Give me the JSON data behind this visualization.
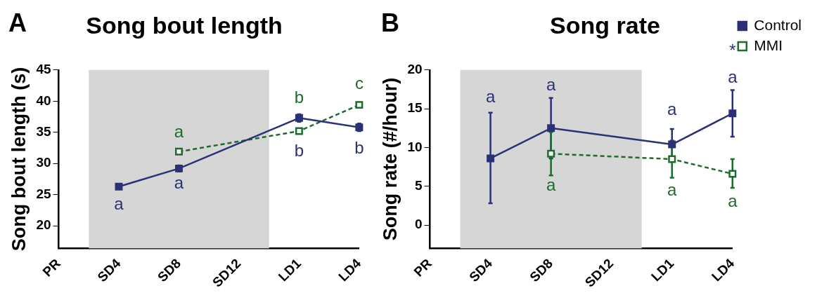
{
  "chart_data": [
    {
      "type": "line",
      "title": "Song bout length",
      "ylabel": "Song bout length (s)",
      "categories": [
        "PR",
        "SD4",
        "SD8",
        "SD12",
        "LD1",
        "LD4"
      ],
      "ylim": [
        16.4,
        45
      ],
      "yticks": [
        20,
        25,
        30,
        35,
        40,
        45
      ],
      "grid": false,
      "legend": false,
      "marker": "square",
      "bands": [
        {
          "axis": "x",
          "from": "SD4",
          "to": "SD12",
          "color": "#d6d6d6"
        }
      ],
      "series": [
        {
          "color": "#2b3175",
          "values": [
            null,
            26.3,
            29.2,
            null,
            37.3,
            35.8
          ],
          "errors": [
            null,
            null,
            0.5,
            null,
            0.6,
            0.6
          ],
          "line_style": "solid"
        },
        {
          "color": "#1e6b2e",
          "values": [
            null,
            null,
            31.9,
            null,
            35.2,
            39.4
          ],
          "errors": [
            null,
            null,
            null,
            null,
            null,
            0.4
          ],
          "line_style": "dashed"
        }
      ],
      "annotations": [
        "A",
        {
          "text": "a",
          "x": "SD4",
          "y": 26.3
        },
        {
          "text": "a",
          "x": "SD8",
          "y": 29.2
        },
        {
          "text": "a",
          "x": "SD8",
          "y": 31.9
        },
        {
          "text": "b",
          "x": "LD1",
          "y": 35.2
        },
        {
          "text": "b",
          "x": "LD1",
          "y": 37.3
        },
        {
          "text": "c",
          "x": "LD4",
          "y": 39.4
        },
        {
          "text": "b",
          "x": "LD4",
          "y": 35.8
        }
      ]
    },
    {
      "type": "line",
      "title": "Song rate",
      "ylabel": "Song rate (#/hour)",
      "categories": [
        "PR",
        "SD4",
        "SD8",
        "SD12",
        "LD1",
        "LD4"
      ],
      "ylim": [
        -3,
        20
      ],
      "yticks": [
        0,
        5,
        10,
        15,
        20
      ],
      "grid": false,
      "legend": "right",
      "marker": "square",
      "bands": [
        {
          "axis": "x",
          "from": "SD4",
          "to": "SD12",
          "color": "#d6d6d6"
        }
      ],
      "series": [
        {
          "name": "Control",
          "color": "#2b3175",
          "values": [
            null,
            8.6,
            12.5,
            null,
            10.4,
            14.4
          ],
          "errors": [
            null,
            [
              2.8,
              14.5
            ],
            [
              8.6,
              16.4
            ],
            null,
            [
              8.4,
              12.4
            ],
            [
              11.4,
              17.4
            ]
          ],
          "line_style": "solid"
        },
        {
          "name": "MMI",
          "color": "#1e6b2e",
          "values": [
            null,
            null,
            9.2,
            null,
            8.5,
            6.6
          ],
          "errors": [
            null,
            null,
            [
              6.4,
              12.0
            ],
            null,
            [
              6.1,
              10.9
            ],
            [
              4.8,
              8.5
            ]
          ],
          "line_style": "dashed"
        }
      ],
      "annotations": [
        "B",
        {
          "text": "a",
          "x": "SD4",
          "y": 14.5
        },
        {
          "text": "a",
          "x": "SD8",
          "y": 16.4
        },
        {
          "text": "a",
          "x": "LD1",
          "y": 12.4
        },
        {
          "text": "a",
          "x": "LD4",
          "y": 17.4
        },
        {
          "text": "*",
          "x": "LD4",
          "y": 17.4
        },
        {
          "text": "a",
          "x": "SD8",
          "y": 6.4
        },
        {
          "text": "a",
          "x": "LD1",
          "y": 6.1
        },
        {
          "text": "a",
          "x": "LD4",
          "y": 4.8
        }
      ]
    }
  ]
}
